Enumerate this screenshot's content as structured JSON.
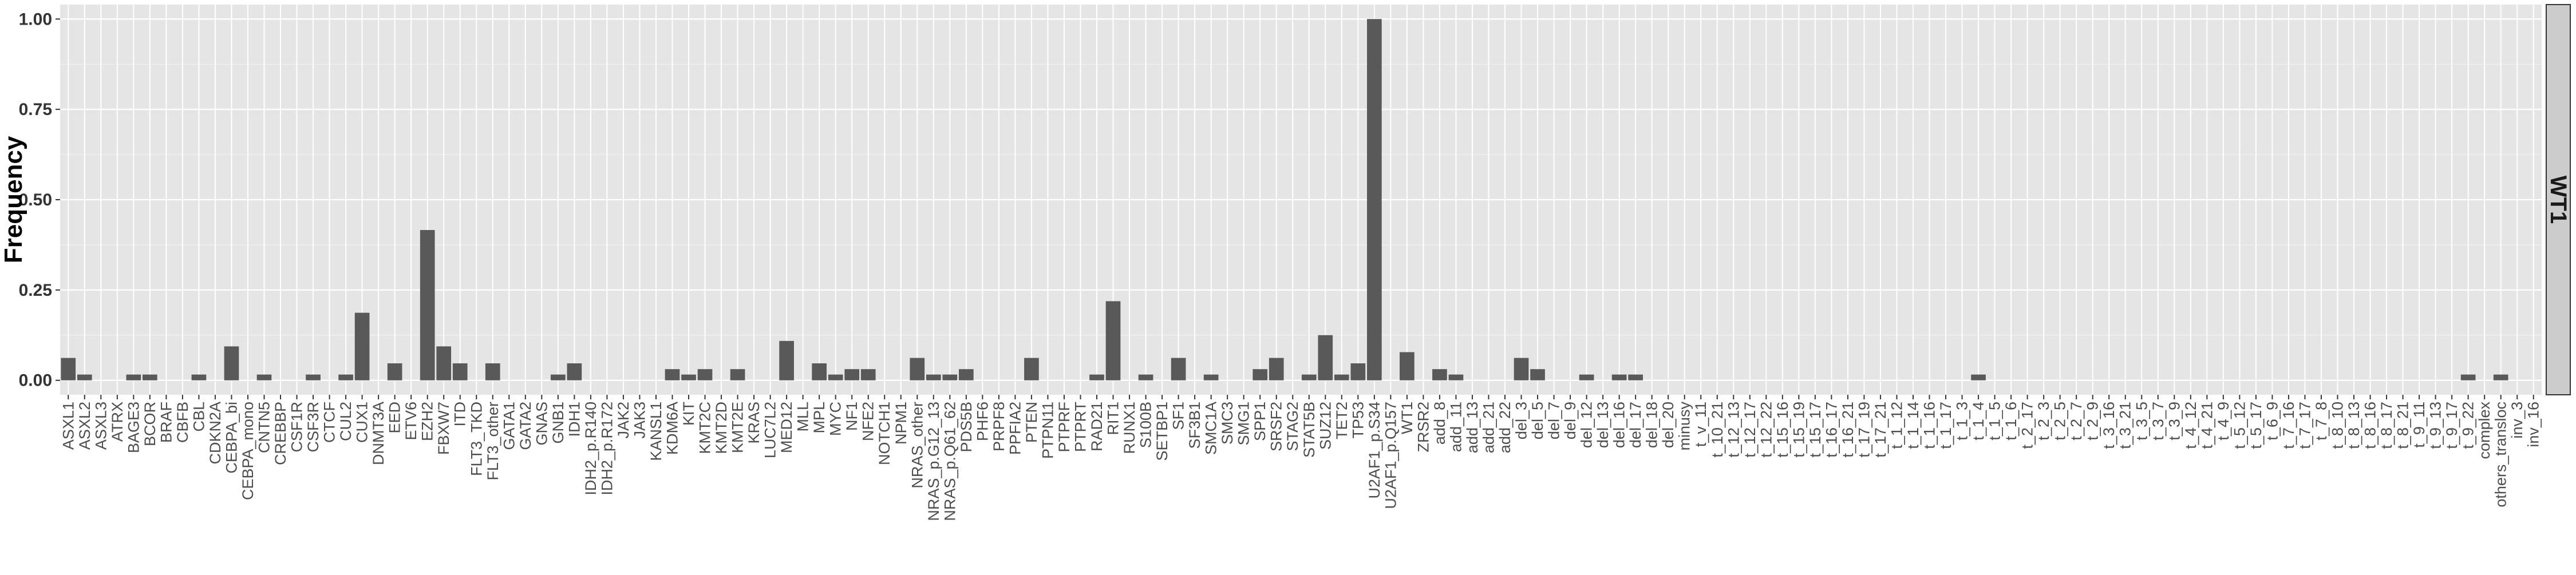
{
  "chart_data": {
    "type": "bar",
    "title": "",
    "xlabel": "",
    "ylabel": "Frequency",
    "facet_label": "WT1",
    "ylim": [
      -0.04,
      1.04
    ],
    "yticks": [
      0.0,
      0.25,
      0.5,
      0.75,
      1.0
    ],
    "ytick_labels": [
      "0.00",
      "0.25",
      "0.50",
      "0.75",
      "1.00"
    ],
    "grid": true,
    "legend": "none",
    "colors": {
      "panel_bg": "#e5e5e5",
      "grid_major": "#ffffff",
      "bar": "#595959",
      "strip_bg": "#cccccc",
      "strip_border": "#333333"
    },
    "categories": [
      "ASXL1",
      "ASXL2",
      "ASXL3",
      "ATRX",
      "BAGE3",
      "BCOR",
      "BRAF",
      "CBFB",
      "CBL",
      "CDKN2A",
      "CEBPA_bi",
      "CEBPA_mono",
      "CNTN5",
      "CREBBP",
      "CSF1R",
      "CSF3R",
      "CTCF",
      "CUL2",
      "CUX1",
      "DNMT3A",
      "EED",
      "ETV6",
      "EZH2",
      "FBXW7",
      "ITD",
      "FLT3_TKD",
      "FLT3_other",
      "GATA1",
      "GATA2",
      "GNAS",
      "GNB1",
      "IDH1",
      "IDH2_p.R140",
      "IDH2_p.R172",
      "JAK2",
      "JAK3",
      "KANSL1",
      "KDM6A",
      "KIT",
      "KMT2C",
      "KMT2D",
      "KMT2E",
      "KRAS",
      "LUC7L2",
      "MED12",
      "MLL",
      "MPL",
      "MYC",
      "NF1",
      "NFE2",
      "NOTCH1",
      "NPM1",
      "NRAS_other",
      "NRAS_p.G12_13",
      "NRAS_p.Q61_62",
      "PDS5B",
      "PHF6",
      "PRPF8",
      "PPFIA2",
      "PTEN",
      "PTPN11",
      "PTPRF",
      "PTPRT",
      "RAD21",
      "RIT1",
      "RUNX1",
      "S100B",
      "SETBP1",
      "SF1",
      "SF3B1",
      "SMC1A",
      "SMC3",
      "SMG1",
      "SPP1",
      "SRSF2",
      "STAG2",
      "STAT5B",
      "SUZ12",
      "TET2",
      "TP53",
      "U2AF1_p.S34",
      "U2AF1_p.Q157",
      "WT1",
      "ZRSR2",
      "add_8",
      "add_11",
      "add_13",
      "add_21",
      "add_22",
      "del_3",
      "del_5",
      "del_7",
      "del_9",
      "del_12",
      "del_13",
      "del_16",
      "del_17",
      "del_18",
      "del_20",
      "minusy",
      "t_v_11",
      "t_10_21",
      "t_12_13",
      "t_12_17",
      "t_12_22",
      "t_15_16",
      "t_15_19",
      "t_15_17",
      "t_16_17",
      "t_16_21",
      "t_17_19",
      "t_17_21",
      "t_1_12",
      "t_1_14",
      "t_1_16",
      "t_1_17",
      "t_1_3",
      "t_1_4",
      "t_1_5",
      "t_1_6",
      "t_2_17",
      "t_2_3",
      "t_2_5",
      "t_2_7",
      "t_2_9",
      "t_3_16",
      "t_3_21",
      "t_3_5",
      "t_3_7",
      "t_3_9",
      "t_4_12",
      "t_4_21",
      "t_4_9",
      "t_5_12",
      "t_5_17",
      "t_6_9",
      "t_7_16",
      "t_7_17",
      "t_7_8",
      "t_8_10",
      "t_8_13",
      "t_8_16",
      "t_8_17",
      "t_8_21",
      "t_9_11",
      "t_9_13",
      "t_9_17",
      "t_9_22",
      "complex",
      "others_transloc",
      "inv_3",
      "inv_16"
    ],
    "values": [
      0.062,
      0.016,
      0,
      0,
      0.016,
      0.016,
      0,
      0,
      0.016,
      0,
      0.094,
      0,
      0.016,
      0,
      0,
      0.016,
      0,
      0.016,
      0.187,
      0,
      0.047,
      0,
      0.416,
      0.094,
      0.047,
      0,
      0.047,
      0,
      0,
      0,
      0.016,
      0.047,
      0,
      0,
      0,
      0,
      0,
      0.031,
      0.016,
      0.031,
      0,
      0.031,
      0,
      0,
      0.109,
      0,
      0.047,
      0.016,
      0.031,
      0.031,
      0,
      0,
      0.062,
      0.016,
      0.016,
      0.031,
      0,
      0,
      0,
      0.062,
      0,
      0,
      0,
      0.016,
      0.219,
      0,
      0.016,
      0,
      0.062,
      0,
      0.016,
      0,
      0,
      0.031,
      0.062,
      0,
      0.016,
      0.125,
      0.016,
      0.047,
      1.0,
      0,
      0.078,
      0,
      0.031,
      0.016,
      0,
      0,
      0,
      0.062,
      0.031,
      0,
      0,
      0.016,
      0,
      0.016,
      0.016,
      0,
      0,
      0,
      0,
      0,
      0,
      0,
      0,
      0,
      0,
      0,
      0,
      0,
      0,
      0,
      0,
      0,
      0,
      0,
      0,
      0.016,
      0,
      0,
      0,
      0,
      0,
      0,
      0,
      0,
      0,
      0,
      0,
      0,
      0,
      0,
      0,
      0,
      0,
      0,
      0,
      0,
      0,
      0,
      0,
      0,
      0,
      0,
      0,
      0,
      0,
      0.016,
      0,
      0.016,
      0,
      0
    ]
  }
}
